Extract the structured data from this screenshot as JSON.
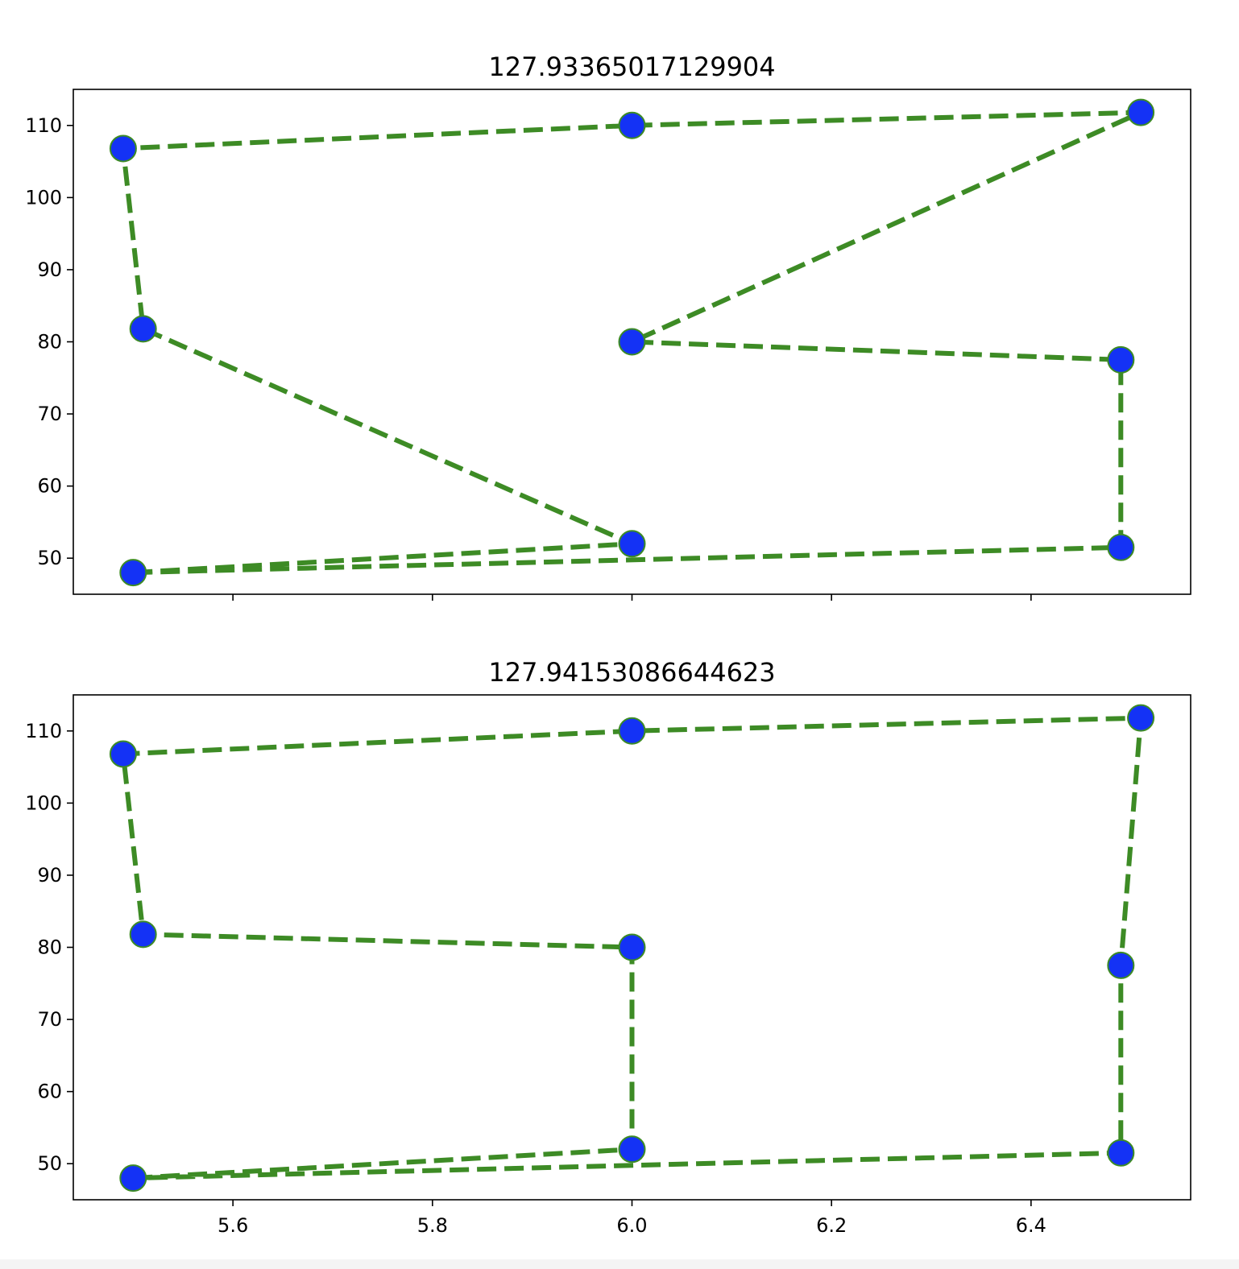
{
  "colors": {
    "line": "#3d8b25",
    "marker_face": "#1432f5",
    "marker_edge": "#3d8b25",
    "axes": "#000000",
    "background": "#ffffff"
  },
  "chart_data": [
    {
      "type": "line",
      "title": "127.93365017129904",
      "xlabel": "",
      "ylabel": "",
      "xlim": [
        5.44,
        6.56
      ],
      "ylim": [
        45,
        115
      ],
      "xticks": [
        5.6,
        5.8,
        6.0,
        6.2,
        6.4
      ],
      "xtick_labels": [
        "",
        "",
        "",
        "",
        ""
      ],
      "yticks": [
        50,
        60,
        70,
        80,
        90,
        100,
        110
      ],
      "ytick_labels": [
        "50",
        "60",
        "70",
        "80",
        "90",
        "100",
        "110"
      ],
      "line_style": "dashed",
      "marker": "circle",
      "grid": false,
      "points": [
        {
          "x": 5.5,
          "y": 48
        },
        {
          "x": 6.0,
          "y": 52
        },
        {
          "x": 5.51,
          "y": 81.8
        },
        {
          "x": 5.49,
          "y": 106.8
        },
        {
          "x": 6.0,
          "y": 110
        },
        {
          "x": 6.51,
          "y": 111.8
        },
        {
          "x": 6.0,
          "y": 80
        },
        {
          "x": 6.49,
          "y": 77.5
        },
        {
          "x": 6.49,
          "y": 51.5
        },
        {
          "x": 5.5,
          "y": 48
        }
      ]
    },
    {
      "type": "line",
      "title": "127.94153086644623",
      "xlabel": "",
      "ylabel": "",
      "xlim": [
        5.44,
        6.56
      ],
      "ylim": [
        45,
        115
      ],
      "xticks": [
        5.6,
        5.8,
        6.0,
        6.2,
        6.4
      ],
      "xtick_labels": [
        "5.6",
        "5.8",
        "6.0",
        "6.2",
        "6.4"
      ],
      "yticks": [
        50,
        60,
        70,
        80,
        90,
        100,
        110
      ],
      "ytick_labels": [
        "50",
        "60",
        "70",
        "80",
        "90",
        "100",
        "110"
      ],
      "line_style": "dashed",
      "marker": "circle",
      "grid": false,
      "points": [
        {
          "x": 5.5,
          "y": 48
        },
        {
          "x": 6.0,
          "y": 52
        },
        {
          "x": 6.0,
          "y": 80
        },
        {
          "x": 5.51,
          "y": 81.8
        },
        {
          "x": 5.49,
          "y": 106.8
        },
        {
          "x": 6.0,
          "y": 110
        },
        {
          "x": 6.51,
          "y": 111.8
        },
        {
          "x": 6.49,
          "y": 77.5
        },
        {
          "x": 6.49,
          "y": 51.5
        },
        {
          "x": 5.5,
          "y": 48
        }
      ]
    }
  ]
}
